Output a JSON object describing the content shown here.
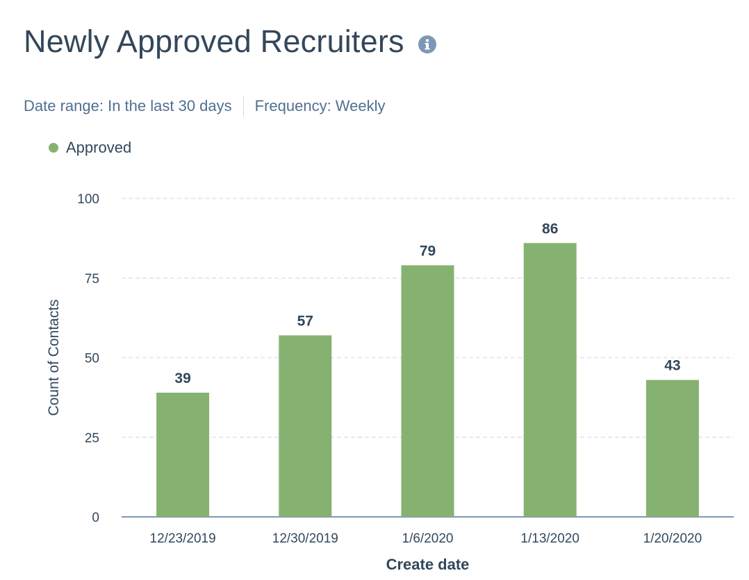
{
  "header": {
    "title": "Newly Approved Recruiters",
    "info_icon": "info-icon"
  },
  "filters": {
    "date_range": "Date range: In the last 30 days",
    "frequency": "Frequency: Weekly"
  },
  "colors": {
    "bar": "#86b271",
    "text": "#33475b",
    "grid": "#dfe3eb",
    "axis": "#7c98b6"
  },
  "chart_data": {
    "type": "bar",
    "title": "Newly Approved Recruiters",
    "categories": [
      "12/23/2019",
      "12/30/2019",
      "1/6/2020",
      "1/13/2020",
      "1/20/2020"
    ],
    "series": [
      {
        "name": "Approved",
        "values": [
          39,
          57,
          79,
          86,
          43
        ]
      }
    ],
    "xlabel": "Create date",
    "ylabel": "Count of Contacts",
    "ylim": [
      0,
      100
    ],
    "yticks": [
      0,
      25,
      50,
      75,
      100
    ],
    "legend": "top-left",
    "grid": true
  }
}
